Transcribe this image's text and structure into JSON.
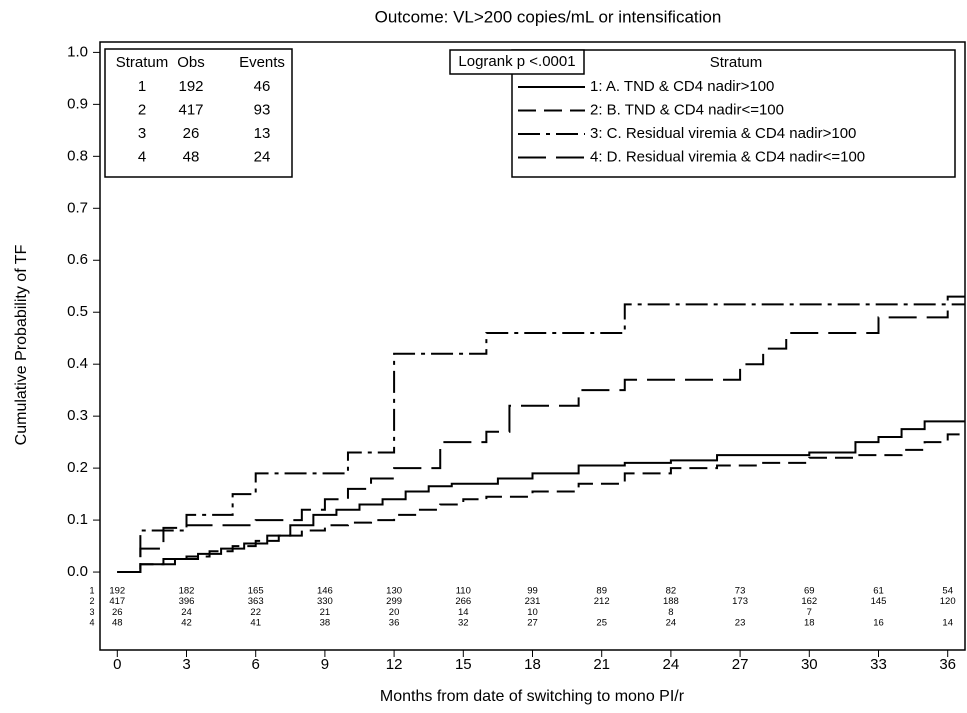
{
  "chart_data": {
    "type": "step",
    "title": "Outcome: VL>200 copies/mL or intensification",
    "x_label": "Months from date of switching to mono PI/r",
    "y_label": "Cumulative Probability of TF",
    "xlim": [
      -0.75,
      36.75
    ],
    "ylim": [
      -0.15,
      1.02
    ],
    "xticks": [
      0,
      3,
      6,
      9,
      12,
      15,
      18,
      21,
      24,
      27,
      30,
      33,
      36
    ],
    "yticks": [
      {
        "value": 0,
        "label": "0.0"
      },
      0.1,
      0.2,
      0.3,
      0.4,
      0.5,
      0.6,
      0.7,
      0.8,
      0.9,
      {
        "value": 1,
        "label": "1.0"
      }
    ],
    "grid": false,
    "legend_title": "Stratum",
    "series": [
      {
        "name": "1: A. TND & CD4 nadir>100",
        "color": "#000000",
        "x": [
          0,
          1,
          2.5,
          3.5,
          4.5,
          5.5,
          6.5,
          7.5,
          8.5,
          9.5,
          10.5,
          11.5,
          12.5,
          13.5,
          14.5,
          16.5,
          18,
          20,
          22,
          24,
          26,
          28,
          30,
          32,
          33,
          34,
          35
        ],
        "values": [
          0,
          0.015,
          0.025,
          0.035,
          0.045,
          0.055,
          0.07,
          0.09,
          0.11,
          0.12,
          0.13,
          0.14,
          0.155,
          0.165,
          0.17,
          0.18,
          0.19,
          0.205,
          0.21,
          0.215,
          0.225,
          0.225,
          0.23,
          0.25,
          0.26,
          0.275,
          0.29
        ]
      },
      {
        "name": "2: B. TND & CD4 nadir<=100",
        "color": "#000000",
        "x": [
          0,
          1,
          2,
          3,
          4,
          5,
          6,
          7,
          8,
          9,
          10,
          11,
          12,
          13,
          14,
          15,
          16,
          18,
          20,
          22,
          24,
          26,
          28,
          30,
          32,
          34,
          35,
          36
        ],
        "values": [
          0,
          0.015,
          0.025,
          0.03,
          0.04,
          0.05,
          0.06,
          0.07,
          0.08,
          0.09,
          0.095,
          0.1,
          0.11,
          0.12,
          0.13,
          0.14,
          0.145,
          0.155,
          0.17,
          0.19,
          0.2,
          0.205,
          0.21,
          0.22,
          0.225,
          0.235,
          0.25,
          0.265
        ]
      },
      {
        "name": "3: C. Residual viremia & CD4 nadir>100",
        "color": "#000000",
        "x": [
          0,
          1,
          3,
          5,
          6,
          10,
          12,
          16,
          22
        ],
        "values": [
          0,
          0.08,
          0.11,
          0.15,
          0.19,
          0.23,
          0.42,
          0.46,
          0.515
        ]
      },
      {
        "name": "4: D. Residual viremia & CD4 nadir<=100",
        "color": "#000000",
        "x": [
          0,
          1,
          2,
          3,
          6,
          8,
          9,
          10,
          11,
          12,
          14,
          16,
          17,
          20,
          22,
          27,
          28,
          29,
          33,
          36
        ],
        "values": [
          0,
          0.045,
          0.085,
          0.09,
          0.1,
          0.12,
          0.14,
          0.16,
          0.18,
          0.2,
          0.25,
          0.27,
          0.32,
          0.35,
          0.37,
          0.4,
          0.43,
          0.46,
          0.49,
          0.53
        ]
      }
    ],
    "stats_table": {
      "header": [
        "Stratum",
        "Obs",
        "Events"
      ],
      "rows": [
        [
          1,
          192,
          46
        ],
        [
          2,
          417,
          93
        ],
        [
          3,
          26,
          13
        ],
        [
          4,
          48,
          24
        ]
      ]
    },
    "annotation": "Logrank p <.0001",
    "risk_table": [
      {
        "label": "1",
        "values": [
          192,
          182,
          165,
          146,
          130,
          110,
          99,
          89,
          82,
          73,
          69,
          61,
          54
        ]
      },
      {
        "label": "2",
        "values": [
          417,
          396,
          363,
          330,
          299,
          266,
          231,
          212,
          188,
          173,
          162,
          145,
          120
        ]
      },
      {
        "label": "3",
        "values": [
          26,
          24,
          22,
          21,
          20,
          14,
          10,
          null,
          8,
          null,
          7,
          null,
          null
        ]
      },
      {
        "label": "4",
        "values": [
          48,
          42,
          41,
          38,
          36,
          32,
          27,
          25,
          24,
          23,
          18,
          16,
          14
        ]
      }
    ]
  }
}
